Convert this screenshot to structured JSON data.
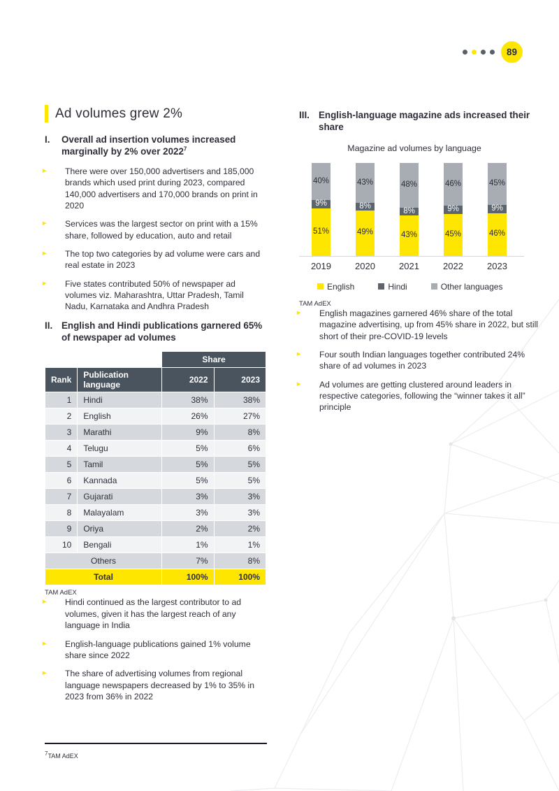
{
  "page": {
    "number": "89",
    "dot_colors": [
      "#596069",
      "#FFE600",
      "#596069",
      "#596069"
    ],
    "accent_color": "#FFE600"
  },
  "left": {
    "title": "Ad volumes grew 2%",
    "section1": {
      "numeral": "I.",
      "heading": "Overall ad insertion volumes increased marginally by 2% over 2022",
      "heading_sup": "7",
      "bullets": [
        "There were over 150,000 advertisers and 185,000 brands which used print during 2023, compared 140,000 advertisers and 170,000 brands on print in 2020",
        "Services was the largest sector on print with a 15% share, followed by education, auto and retail",
        "The top two categories by ad volume were cars and real estate in 2023",
        "Five states contributed 50% of newspaper ad volumes viz. Maharashtra, Uttar Pradesh, Tamil Nadu, Karnataka and Andhra Pradesh"
      ]
    },
    "section2": {
      "numeral": "II.",
      "heading": "English and Hindi publications garnered 65% of newspaper ad volumes"
    },
    "table": {
      "share_header": "Share",
      "columns": [
        "Rank",
        "Publication language",
        "2022",
        "2023"
      ],
      "header_bg": "#4a545e",
      "rows": [
        {
          "rank": "1",
          "language": "Hindi",
          "y2022": "38%",
          "y2023": "38%"
        },
        {
          "rank": "2",
          "language": "English",
          "y2022": "26%",
          "y2023": "27%"
        },
        {
          "rank": "3",
          "language": "Marathi",
          "y2022": "9%",
          "y2023": "8%"
        },
        {
          "rank": "4",
          "language": "Telugu",
          "y2022": "5%",
          "y2023": "6%"
        },
        {
          "rank": "5",
          "language": "Tamil",
          "y2022": "5%",
          "y2023": "5%"
        },
        {
          "rank": "6",
          "language": "Kannada",
          "y2022": "5%",
          "y2023": "5%"
        },
        {
          "rank": "7",
          "language": "Gujarati",
          "y2022": "3%",
          "y2023": "3%"
        },
        {
          "rank": "8",
          "language": "Malayalam",
          "y2022": "3%",
          "y2023": "3%"
        },
        {
          "rank": "9",
          "language": "Oriya",
          "y2022": "2%",
          "y2023": "2%"
        },
        {
          "rank": "10",
          "language": "Bengali",
          "y2022": "1%",
          "y2023": "1%"
        }
      ],
      "others": {
        "label": "Others",
        "y2022": "7%",
        "y2023": "8%"
      },
      "total": {
        "label": "Total",
        "y2022": "100%",
        "y2023": "100%"
      },
      "source": "TAM AdEX"
    },
    "bullets2": [
      "Hindi continued as the largest contributor to ad volumes, given it has the largest reach of any language in India",
      "English-language publications gained 1% volume share since 2022",
      "The share of advertising volumes from regional language newspapers decreased by 1% to 35% in 2023 from 36% in 2022"
    ],
    "footnote": {
      "sup": "7",
      "text": "TAM AdEX"
    }
  },
  "right": {
    "section3": {
      "numeral": "III.",
      "heading": "English-language magazine ads increased their share"
    },
    "source": "TAM AdEX",
    "bullets": [
      "English magazines garnered 46% share of the total magazine advertising, up from 45% share in 2022, but still short of their pre-COVID-19 levels",
      "Four south Indian languages together contributed 24% share of ad volumes in 2023",
      "Ad volumes are getting clustered around leaders in respective categories, following the “winner takes it all” principle"
    ]
  },
  "chart_data": {
    "type": "bar",
    "stacked": true,
    "percent_stack": true,
    "title": "Magazine ad volumes by language",
    "categories": [
      "2019",
      "2020",
      "2021",
      "2022",
      "2023"
    ],
    "series": [
      {
        "name": "English",
        "color": "#FFE600",
        "label_color": "#2e2e38",
        "values": [
          51,
          49,
          43,
          45,
          46
        ]
      },
      {
        "name": "Hindi",
        "color": "#5c646e",
        "label_color": "#ffffff",
        "values": [
          9,
          8,
          8,
          9,
          9
        ]
      },
      {
        "name": "Other languages",
        "color": "#a8adb4",
        "label_color": "#2e2e38",
        "values": [
          40,
          43,
          48,
          46,
          45
        ]
      }
    ],
    "value_suffix": "%",
    "ylim": [
      0,
      100
    ],
    "grid": false,
    "legend_position": "bottom",
    "source": "TAM AdEX"
  }
}
